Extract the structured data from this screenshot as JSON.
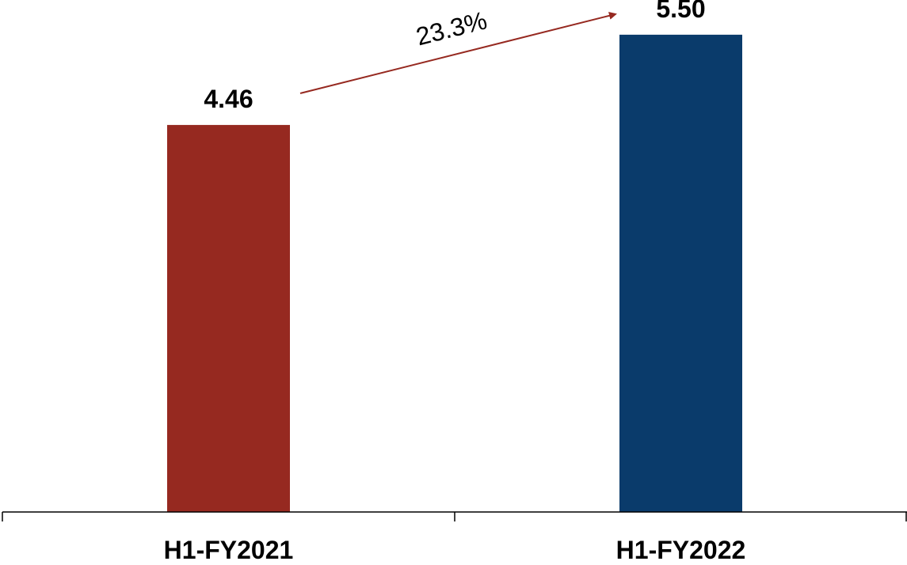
{
  "chart_data": {
    "type": "bar",
    "categories": [
      "H1-FY2021",
      "H1-FY2022"
    ],
    "values": [
      4.46,
      5.5
    ],
    "value_labels": [
      "4.46",
      "5.50"
    ],
    "bar_colors": [
      "#962920",
      "#0a3b6b"
    ],
    "title": "",
    "xlabel": "",
    "ylabel": "",
    "ylim": [
      0,
      5.9
    ],
    "grid": false,
    "legend": "none",
    "annotation": {
      "text": "23.3%",
      "type": "growth-arrow",
      "color": "#962920",
      "from": "H1-FY2021",
      "to": "H1-FY2022"
    }
  }
}
